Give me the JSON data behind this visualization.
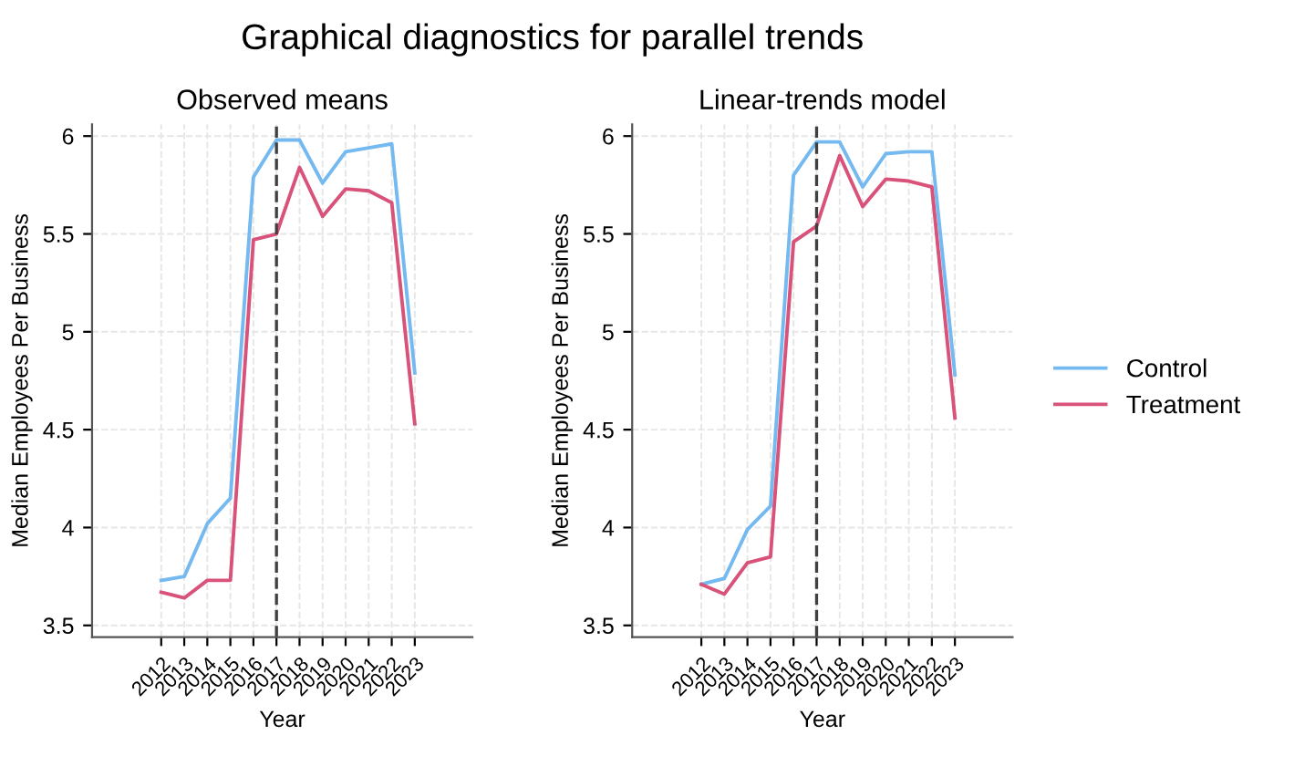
{
  "chart_data": [
    {
      "type": "line",
      "title": "Graphical diagnostics for parallel trends",
      "subtitle": "Observed means",
      "xlabel": "Year",
      "ylabel": "Median Employees Per Business",
      "x": [
        2012,
        2013,
        2014,
        2015,
        2016,
        2017,
        2018,
        2019,
        2020,
        2021,
        2022,
        2023
      ],
      "series": [
        {
          "name": "Control",
          "color": "#74b9f0",
          "values": [
            3.73,
            3.75,
            4.02,
            4.15,
            5.79,
            5.98,
            5.98,
            5.76,
            5.92,
            5.94,
            5.96,
            4.79
          ]
        },
        {
          "name": "Treatment",
          "color": "#d9527a",
          "values": [
            3.67,
            3.64,
            3.73,
            3.73,
            5.47,
            5.5,
            5.84,
            5.59,
            5.73,
            5.72,
            5.66,
            4.53
          ]
        }
      ],
      "xlim": [
        2009,
        2025.5
      ],
      "xticks": [
        2012,
        2013,
        2014,
        2015,
        2016,
        2017,
        2018,
        2019,
        2020,
        2021,
        2022,
        2023
      ],
      "ylim": [
        3.44,
        6.06
      ],
      "yticks": [
        3.5,
        4,
        4.5,
        5,
        5.5,
        6
      ],
      "ref_lines": [
        {
          "axis": "x",
          "value": 2017,
          "color": "#404040",
          "line_style": "dashed"
        }
      ],
      "grid": true,
      "legend": "right",
      "marker": "none",
      "line_style": "solid"
    },
    {
      "type": "line",
      "subtitle": "Linear-trends model",
      "xlabel": "Year",
      "ylabel": "Median Employees Per Business",
      "x": [
        2012,
        2013,
        2014,
        2015,
        2016,
        2017,
        2018,
        2019,
        2020,
        2021,
        2022,
        2023
      ],
      "series": [
        {
          "name": "Control",
          "color": "#74b9f0",
          "values": [
            3.71,
            3.74,
            3.99,
            4.11,
            5.8,
            5.97,
            5.97,
            5.74,
            5.91,
            5.92,
            5.92,
            4.78
          ]
        },
        {
          "name": "Treatment",
          "color": "#d9527a",
          "values": [
            3.71,
            3.66,
            3.82,
            3.85,
            5.46,
            5.54,
            5.9,
            5.64,
            5.78,
            5.77,
            5.74,
            4.56
          ]
        }
      ],
      "xlim": [
        2009,
        2025.5
      ],
      "xticks": [
        2012,
        2013,
        2014,
        2015,
        2016,
        2017,
        2018,
        2019,
        2020,
        2021,
        2022,
        2023
      ],
      "ylim": [
        3.44,
        6.06
      ],
      "yticks": [
        3.5,
        4,
        4.5,
        5,
        5.5,
        6
      ],
      "ref_lines": [
        {
          "axis": "x",
          "value": 2017,
          "color": "#404040",
          "line_style": "dashed"
        }
      ],
      "grid": true,
      "legend": "right",
      "marker": "none",
      "line_style": "solid"
    }
  ]
}
